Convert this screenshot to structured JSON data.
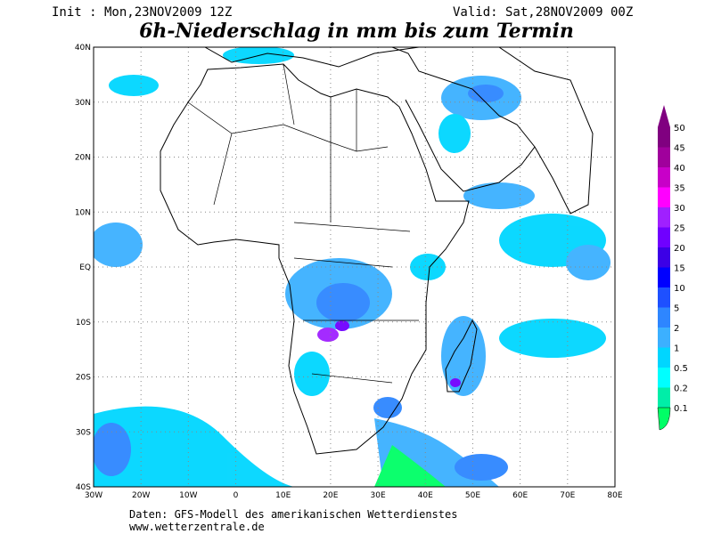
{
  "header": {
    "init": "Init : Mon,23NOV2009 12Z",
    "valid": "Valid: Sat,28NOV2009 00Z",
    "title": "6h-Niederschlag in mm bis zum Termin"
  },
  "map": {
    "lat_labels": [
      "40N",
      "30N",
      "20N",
      "10N",
      "EQ",
      "10S",
      "20S",
      "30S",
      "40S"
    ],
    "lon_labels": [
      "30W",
      "20W",
      "10W",
      "0",
      "10E",
      "20E",
      "30E",
      "40E",
      "50E",
      "60E",
      "70E",
      "80E"
    ]
  },
  "colorbar": {
    "levels": [
      {
        "label": "50",
        "color": "#800080"
      },
      {
        "label": "45",
        "color": "#a0009c"
      },
      {
        "label": "40",
        "color": "#c800c8"
      },
      {
        "label": "35",
        "color": "#ff00ff"
      },
      {
        "label": "30",
        "color": "#a020ff"
      },
      {
        "label": "25",
        "color": "#7000ff"
      },
      {
        "label": "20",
        "color": "#3c00e6"
      },
      {
        "label": "15",
        "color": "#0000ff"
      },
      {
        "label": "10",
        "color": "#1e50ff"
      },
      {
        "label": "5",
        "color": "#2e86ff"
      },
      {
        "label": "2",
        "color": "#3cb0ff"
      },
      {
        "label": "1",
        "color": "#00d6ff"
      },
      {
        "label": "0.5",
        "color": "#00ffff"
      },
      {
        "label": "0.2",
        "color": "#00eea8"
      },
      {
        "label": "0.1",
        "color": "#00ff66"
      }
    ]
  },
  "footer": {
    "source": "Daten: GFS-Modell des amerikanischen Wetterdienstes",
    "url": "www.wetterzentrale.de"
  }
}
